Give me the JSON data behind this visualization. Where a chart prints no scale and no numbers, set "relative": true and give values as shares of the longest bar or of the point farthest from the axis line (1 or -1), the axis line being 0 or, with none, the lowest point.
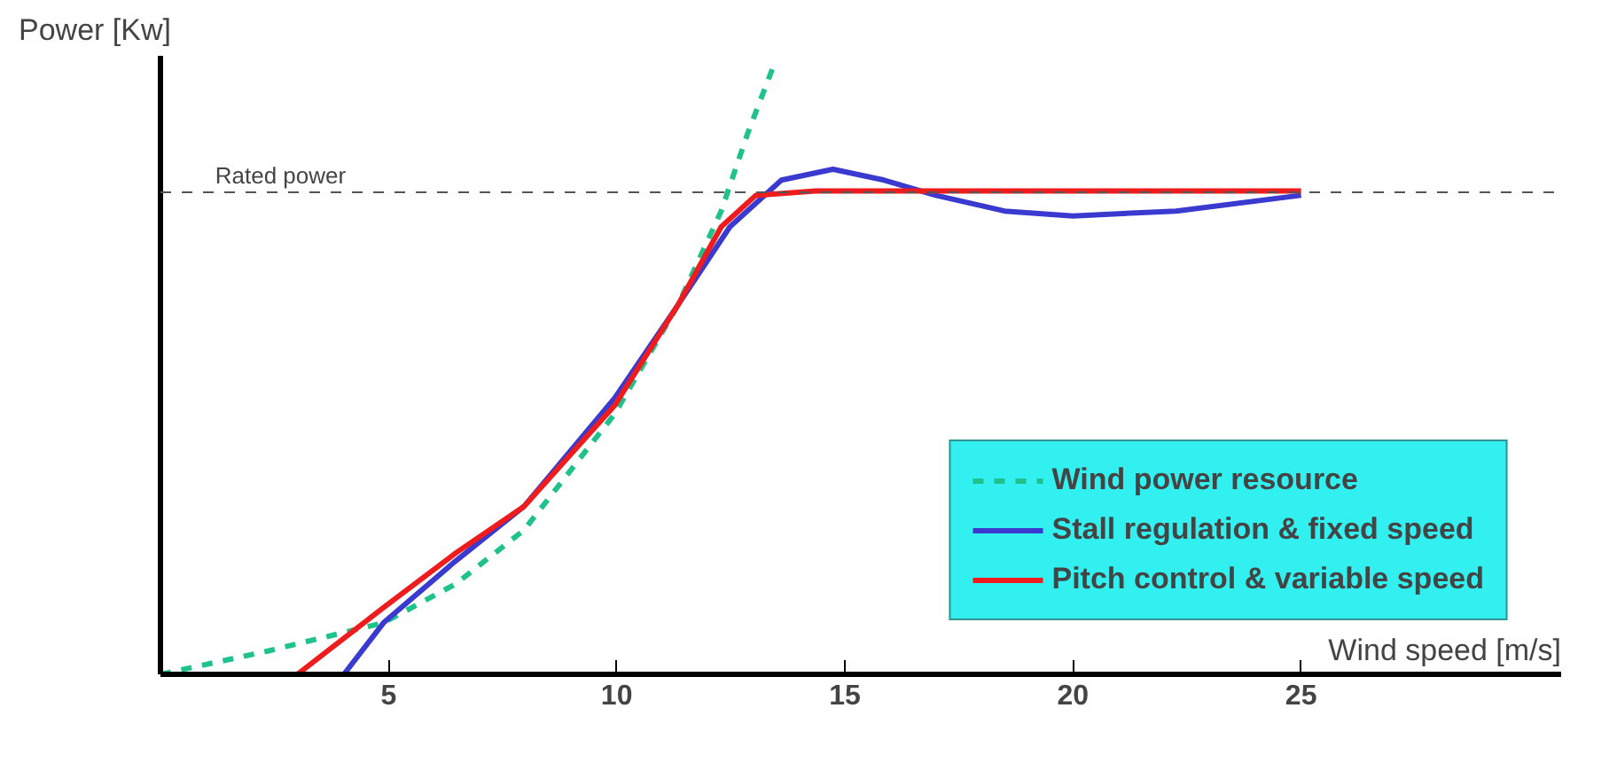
{
  "chart_data": {
    "type": "line",
    "relative": true,
    "xlabel": "Wind speed [m/s]",
    "ylabel": "Power [Kw]",
    "xlim": [
      0,
      30.7
    ],
    "xticks": [
      5,
      10,
      15,
      20,
      25
    ],
    "grid": false,
    "legend": "bottom right",
    "ref_lines": [
      {
        "axis": "y",
        "value": 0.795,
        "label": "Rated power",
        "color": "#555555",
        "line_style": "dashed"
      }
    ],
    "series": [
      {
        "name": "Wind power resource",
        "color": "#1fc28a",
        "line_style": "dashed",
        "x": [
          0,
          2.33,
          4.89,
          6.47,
          7.97,
          9.96,
          11.35,
          12.29,
          12.86,
          13.42
        ],
        "values": [
          0,
          0.038,
          0.085,
          0.149,
          0.238,
          0.43,
          0.61,
          0.764,
          0.89,
          1
        ]
      },
      {
        "name": "Stall regulation & fixed speed",
        "color": "#3a3ad0",
        "line_style": "solid",
        "x": [
          4.02,
          4.89,
          6.47,
          7.97,
          9.96,
          11.35,
          12.48,
          13.61,
          14.74,
          15.86,
          16.99,
          18.5,
          20,
          22.26,
          25
        ],
        "values": [
          0,
          0.085,
          0.187,
          0.277,
          0.456,
          0.61,
          0.738,
          0.815,
          0.833,
          0.815,
          0.79,
          0.764,
          0.756,
          0.764,
          0.79
        ]
      },
      {
        "name": "Pitch control & variable speed",
        "color": "#ee1c1c",
        "line_style": "solid",
        "x": [
          3.0,
          4.89,
          6.47,
          7.97,
          9.96,
          11.35,
          12.29,
          13.05,
          14.36,
          16.24,
          25
        ],
        "values": [
          0,
          0.11,
          0.2,
          0.277,
          0.444,
          0.61,
          0.738,
          0.79,
          0.797,
          0.797,
          0.797
        ]
      }
    ]
  }
}
